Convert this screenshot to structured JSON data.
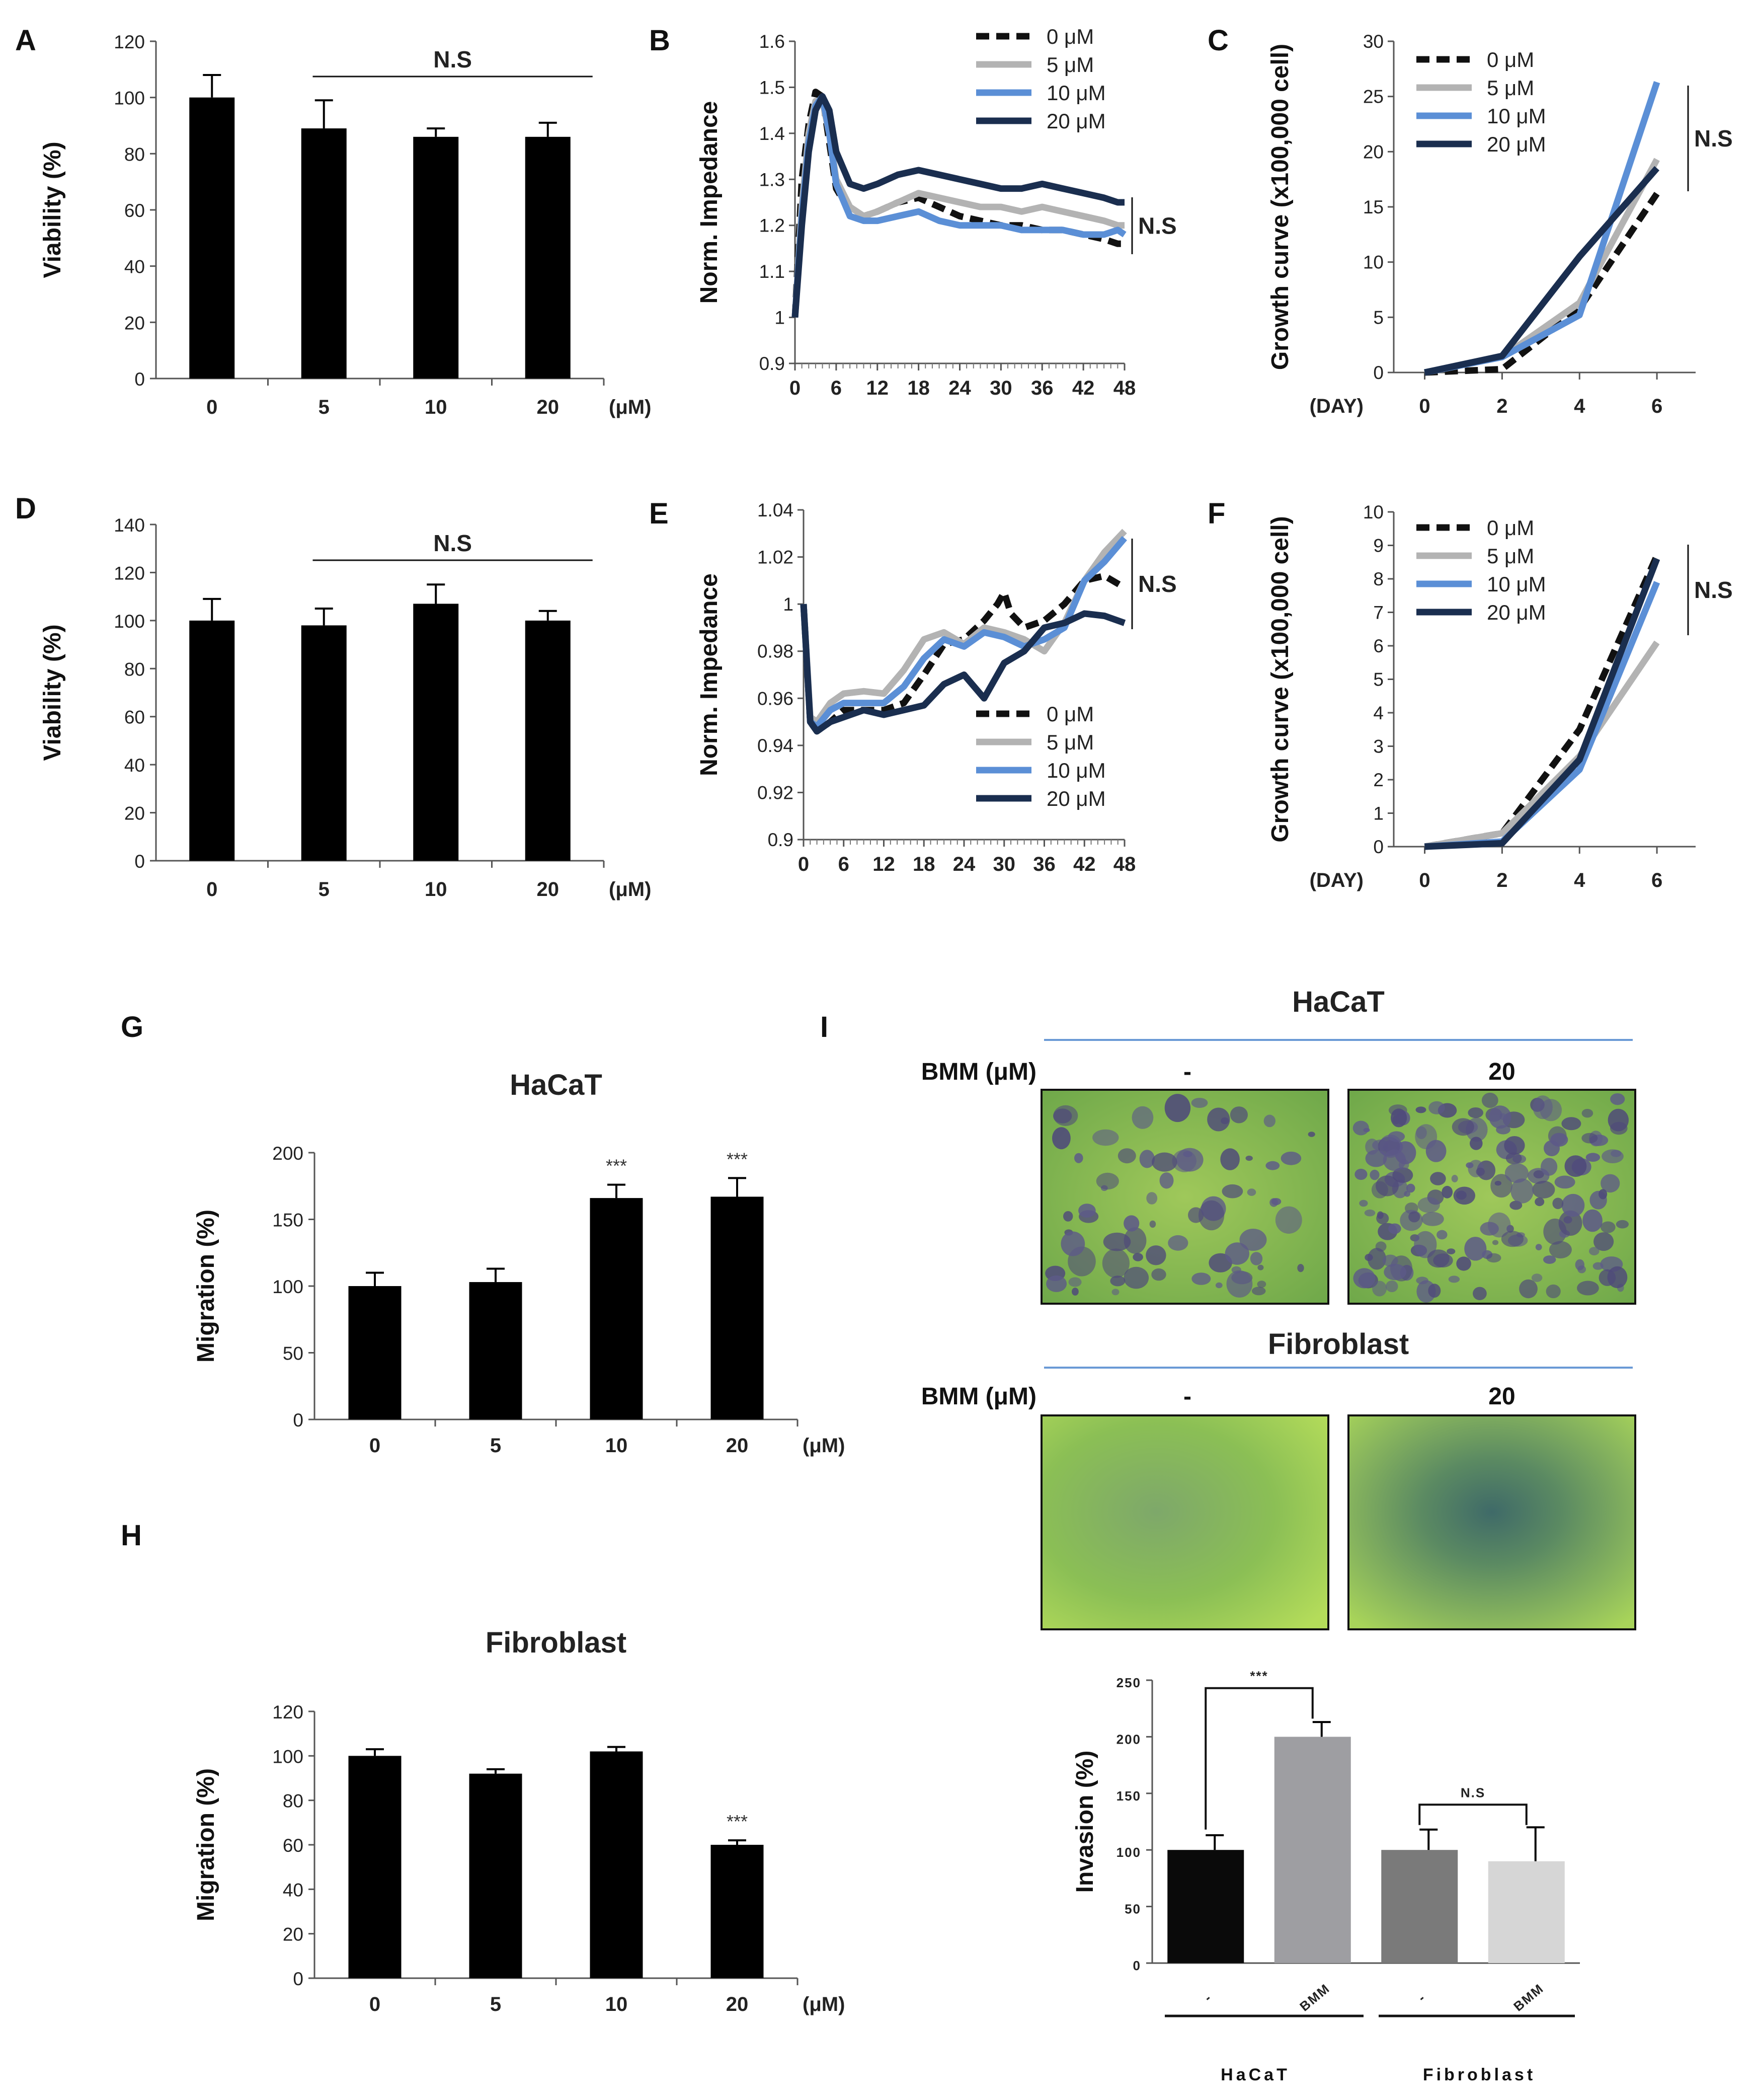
{
  "panels": {
    "A": "A",
    "B": "B",
    "C": "C",
    "D": "D",
    "E": "E",
    "F": "F",
    "G": "G",
    "H": "H",
    "I": "I"
  },
  "common": {
    "dose_unit": "(μM)",
    "day_label": "(DAY)",
    "ns": "N.S",
    "stars": "***",
    "legend": [
      "0 μM",
      "5 μM",
      "10 μM",
      "20 μM"
    ],
    "series_colors": [
      "#111111",
      "#b3b3b3",
      "#5b8fd6",
      "#1a2e4f"
    ]
  },
  "chart_data": [
    {
      "id": "A",
      "type": "bar",
      "categories": [
        "0",
        "5",
        "10",
        "20"
      ],
      "values": [
        100,
        89,
        86,
        86
      ],
      "errors": [
        8,
        10,
        3,
        5
      ],
      "ylabel": "Viability (%)",
      "ylim": [
        0,
        120
      ],
      "yticks": [
        "0",
        "20",
        "40",
        "60",
        "80",
        "100",
        "120"
      ],
      "annotation": "N.S"
    },
    {
      "id": "B",
      "type": "line",
      "ylabel": "Norm. Impedance",
      "ylim": [
        0.9,
        1.6
      ],
      "yticks": [
        "0.9",
        "1",
        "1.1",
        "1.2",
        "1.3",
        "1.4",
        "1.5",
        "1.6"
      ],
      "xticks": [
        "0",
        "6",
        "12",
        "18",
        "24",
        "30",
        "36",
        "42",
        "48"
      ],
      "series": [
        {
          "name": "0 μM",
          "x": [
            0,
            1,
            2,
            3,
            4,
            5,
            6,
            8,
            10,
            12,
            15,
            18,
            21,
            24,
            27,
            30,
            33,
            36,
            39,
            42,
            45,
            47,
            48
          ],
          "y": [
            1.0,
            1.3,
            1.42,
            1.49,
            1.48,
            1.38,
            1.28,
            1.23,
            1.22,
            1.23,
            1.25,
            1.26,
            1.24,
            1.22,
            1.21,
            1.2,
            1.2,
            1.19,
            1.19,
            1.18,
            1.17,
            1.16,
            1.16
          ]
        },
        {
          "name": "5 μM",
          "x": [
            0,
            1,
            2,
            3,
            4,
            5,
            6,
            8,
            10,
            12,
            15,
            18,
            21,
            24,
            27,
            30,
            33,
            36,
            39,
            42,
            45,
            47,
            48
          ],
          "y": [
            1.0,
            1.24,
            1.4,
            1.47,
            1.47,
            1.4,
            1.3,
            1.24,
            1.22,
            1.23,
            1.25,
            1.27,
            1.26,
            1.25,
            1.24,
            1.24,
            1.23,
            1.24,
            1.23,
            1.22,
            1.21,
            1.2,
            1.2
          ]
        },
        {
          "name": "10 μM",
          "x": [
            0,
            1,
            2,
            3,
            4,
            5,
            6,
            8,
            10,
            12,
            15,
            18,
            21,
            24,
            27,
            30,
            33,
            36,
            39,
            42,
            45,
            47,
            48
          ],
          "y": [
            1.0,
            1.22,
            1.38,
            1.46,
            1.48,
            1.4,
            1.29,
            1.22,
            1.21,
            1.21,
            1.22,
            1.23,
            1.21,
            1.2,
            1.2,
            1.2,
            1.19,
            1.19,
            1.19,
            1.18,
            1.18,
            1.19,
            1.18
          ]
        },
        {
          "name": "20 μM",
          "x": [
            0,
            1,
            2,
            3,
            4,
            5,
            6,
            8,
            10,
            12,
            15,
            18,
            21,
            24,
            27,
            30,
            33,
            36,
            39,
            42,
            45,
            47,
            48
          ],
          "y": [
            1.0,
            1.2,
            1.36,
            1.45,
            1.48,
            1.45,
            1.36,
            1.29,
            1.28,
            1.29,
            1.31,
            1.32,
            1.31,
            1.3,
            1.29,
            1.28,
            1.28,
            1.29,
            1.28,
            1.27,
            1.26,
            1.25,
            1.25
          ]
        }
      ],
      "annotation": "N.S"
    },
    {
      "id": "C",
      "type": "line",
      "ylabel": "Growth curve (x100,000 cell)",
      "xlabel": "(DAY)",
      "ylim": [
        0,
        30
      ],
      "yticks": [
        "0",
        "5",
        "10",
        "15",
        "20",
        "25",
        "30"
      ],
      "xticks": [
        "0",
        "2",
        "4",
        "6"
      ],
      "series": [
        {
          "name": "0 μM",
          "x": [
            0,
            2,
            4,
            6
          ],
          "y": [
            0,
            0.3,
            5.8,
            16.2
          ]
        },
        {
          "name": "5 μM",
          "x": [
            0,
            2,
            4,
            6
          ],
          "y": [
            0,
            1.4,
            6.3,
            19.3
          ]
        },
        {
          "name": "10 μM",
          "x": [
            0,
            2,
            4,
            6
          ],
          "y": [
            0,
            1.4,
            5.2,
            26.3
          ]
        },
        {
          "name": "20 μM",
          "x": [
            0,
            2,
            4,
            6
          ],
          "y": [
            0,
            1.5,
            10.5,
            18.5
          ]
        }
      ],
      "annotation": "N.S"
    },
    {
      "id": "D",
      "type": "bar",
      "categories": [
        "0",
        "5",
        "10",
        "20"
      ],
      "values": [
        100,
        98,
        107,
        100
      ],
      "errors": [
        9,
        7,
        8,
        4
      ],
      "ylabel": "Viability (%)",
      "ylim": [
        0,
        140
      ],
      "yticks": [
        "0",
        "20",
        "40",
        "60",
        "80",
        "100",
        "120",
        "140"
      ],
      "annotation": "N.S"
    },
    {
      "id": "E",
      "type": "line",
      "ylabel": "Norm. Impedance",
      "ylim": [
        0.9,
        1.04
      ],
      "yticks": [
        "0.9",
        "0.92",
        "0.94",
        "0.96",
        "0.98",
        "1",
        "1.02",
        "1.04"
      ],
      "xticks": [
        "0",
        "6",
        "12",
        "18",
        "24",
        "30",
        "36",
        "42",
        "48"
      ],
      "series": [
        {
          "name": "0 μM",
          "x": [
            0,
            1,
            2,
            4,
            6,
            9,
            12,
            15,
            18,
            21,
            24,
            27,
            29,
            30,
            31,
            33,
            36,
            39,
            42,
            45,
            48
          ],
          "y": [
            1.0,
            0.95,
            0.946,
            0.95,
            0.955,
            0.955,
            0.955,
            0.958,
            0.97,
            0.983,
            0.985,
            0.993,
            1.0,
            1.005,
            0.996,
            0.99,
            0.993,
            1.0,
            1.01,
            1.012,
            1.007
          ]
        },
        {
          "name": "5 μM",
          "x": [
            0,
            1,
            2,
            4,
            6,
            9,
            12,
            15,
            18,
            21,
            24,
            27,
            30,
            33,
            36,
            39,
            42,
            45,
            48
          ],
          "y": [
            1.0,
            0.952,
            0.95,
            0.958,
            0.962,
            0.963,
            0.962,
            0.972,
            0.985,
            0.988,
            0.983,
            0.99,
            0.988,
            0.985,
            0.98,
            0.992,
            1.01,
            1.022,
            1.031
          ]
        },
        {
          "name": "10 μM",
          "x": [
            0,
            1,
            2,
            4,
            6,
            9,
            12,
            15,
            18,
            21,
            24,
            27,
            30,
            33,
            36,
            39,
            42,
            45,
            48
          ],
          "y": [
            1.0,
            0.95,
            0.948,
            0.955,
            0.958,
            0.958,
            0.958,
            0.965,
            0.977,
            0.985,
            0.982,
            0.988,
            0.986,
            0.982,
            0.985,
            0.99,
            1.01,
            1.018,
            1.028
          ]
        },
        {
          "name": "20 μM",
          "x": [
            0,
            1,
            2,
            4,
            6,
            9,
            12,
            15,
            18,
            21,
            24,
            27,
            30,
            33,
            36,
            39,
            42,
            45,
            48
          ],
          "y": [
            1.0,
            0.95,
            0.946,
            0.95,
            0.952,
            0.955,
            0.953,
            0.955,
            0.957,
            0.966,
            0.97,
            0.96,
            0.975,
            0.98,
            0.99,
            0.992,
            0.996,
            0.995,
            0.992
          ]
        }
      ],
      "annotation": "N.S"
    },
    {
      "id": "F",
      "type": "line",
      "ylabel": "Growth curve (x100,000 cell)",
      "xlabel": "(DAY)",
      "ylim": [
        0,
        10
      ],
      "yticks": [
        "0",
        "1",
        "2",
        "3",
        "4",
        "5",
        "6",
        "7",
        "8",
        "9",
        "10"
      ],
      "xticks": [
        "0",
        "2",
        "4",
        "6"
      ],
      "series": [
        {
          "name": "0 μM",
          "x": [
            0,
            2,
            4,
            6
          ],
          "y": [
            0,
            0.4,
            3.5,
            8.7
          ]
        },
        {
          "name": "5 μM",
          "x": [
            0,
            2,
            4,
            6
          ],
          "y": [
            0,
            0.4,
            2.7,
            6.1
          ]
        },
        {
          "name": "10 μM",
          "x": [
            0,
            2,
            4,
            6
          ],
          "y": [
            0,
            0.15,
            2.3,
            7.9
          ]
        },
        {
          "name": "20 μM",
          "x": [
            0,
            2,
            4,
            6
          ],
          "y": [
            0,
            0.1,
            2.6,
            8.6
          ]
        }
      ],
      "annotation": "N.S"
    },
    {
      "id": "G",
      "type": "bar",
      "title": "HaCaT",
      "categories": [
        "0",
        "5",
        "10",
        "20"
      ],
      "values": [
        100,
        103,
        166,
        167
      ],
      "errors": [
        10,
        10,
        10,
        14
      ],
      "significance": [
        "",
        "",
        "***",
        "***"
      ],
      "ylabel": "Migration (%)",
      "ylim": [
        0,
        200
      ],
      "yticks": [
        "0",
        "50",
        "100",
        "150",
        "200"
      ]
    },
    {
      "id": "H",
      "type": "bar",
      "title": "Fibroblast",
      "categories": [
        "0",
        "5",
        "10",
        "20"
      ],
      "values": [
        100,
        92,
        102,
        60
      ],
      "errors": [
        3,
        2,
        2,
        2
      ],
      "significance": [
        "",
        "",
        "",
        "***"
      ],
      "ylabel": "Migration (%)",
      "ylim": [
        0,
        120
      ],
      "yticks": [
        "0",
        "20",
        "40",
        "60",
        "80",
        "100",
        "120"
      ]
    },
    {
      "id": "I-quant",
      "type": "bar",
      "categories": [
        "-",
        "BMM",
        "-",
        "BMM"
      ],
      "groups": [
        "HaCaT",
        "Fibroblast"
      ],
      "values": [
        100,
        200,
        100,
        90
      ],
      "errors": [
        13,
        13,
        18,
        30
      ],
      "colors": [
        "#0a0a0a",
        "#9e9ea2",
        "#7a7a7a",
        "#d6d6d6"
      ],
      "ylabel": "Invasion (%)",
      "ylim": [
        0,
        250
      ],
      "yticks": [
        "0",
        "50",
        "100",
        "150",
        "200",
        "250"
      ],
      "brackets": [
        "***",
        "N.S"
      ]
    }
  ],
  "panel_I": {
    "haCaT_title": "HaCaT",
    "fibro_title": "Fibroblast",
    "row_label": "BMM (μM)",
    "col_minus": "-",
    "col_dose": "20"
  }
}
